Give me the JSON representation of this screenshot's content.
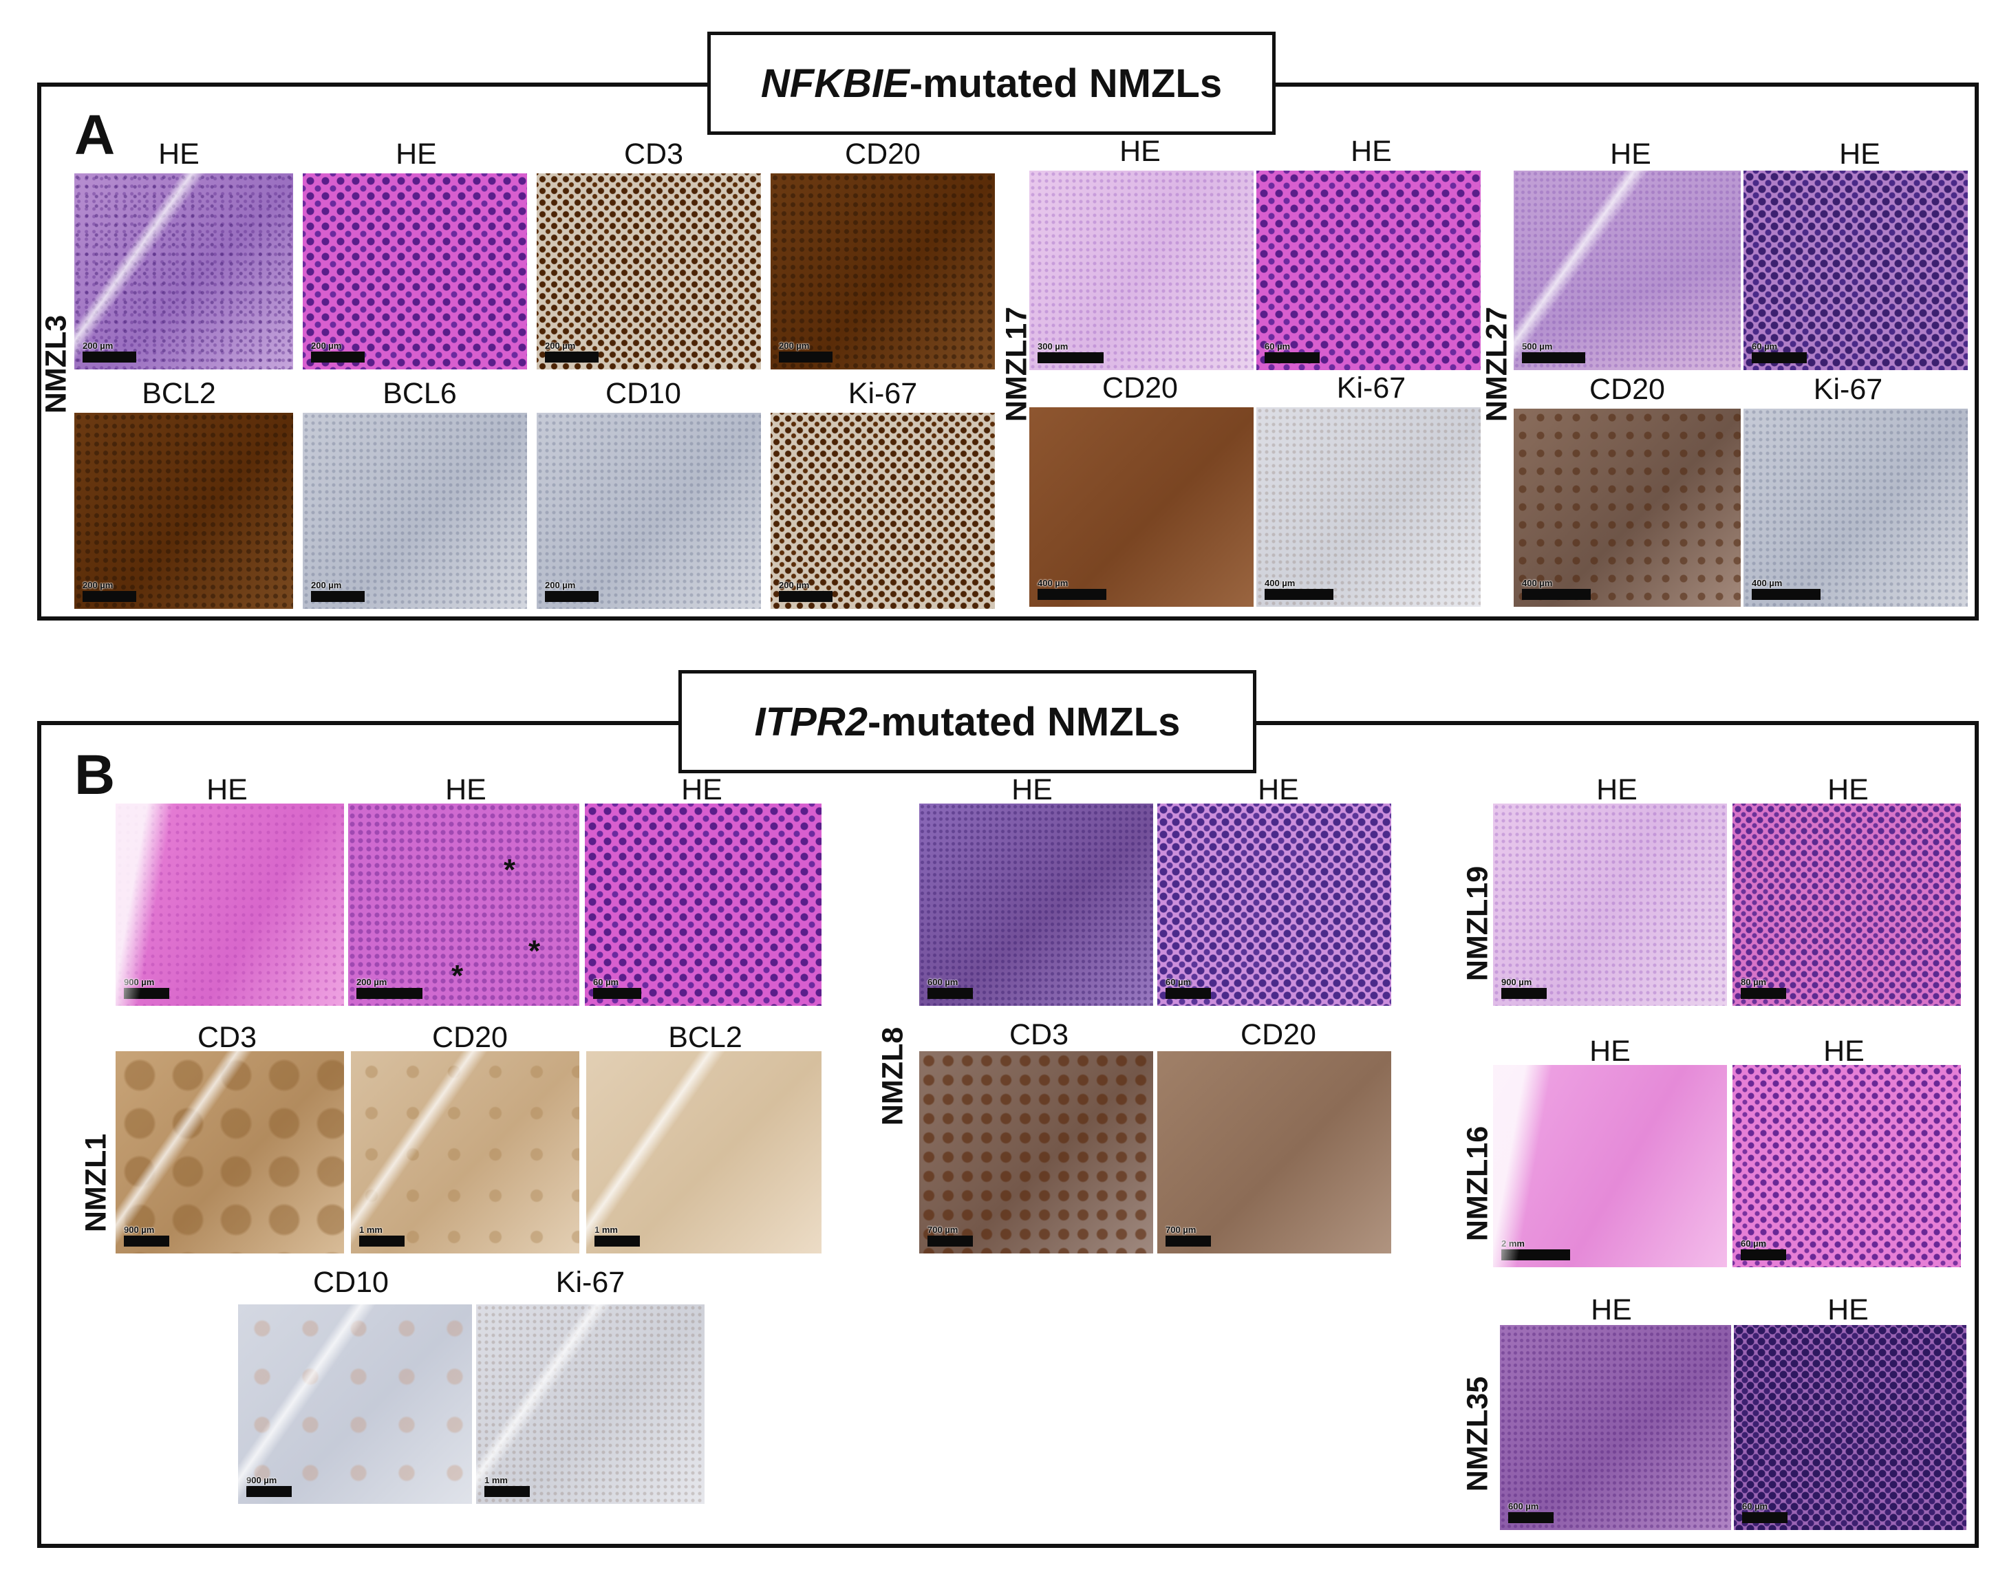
{
  "panelA": {
    "title_italic": "NFKBIE",
    "title_rest": "-mutated NMZLs",
    "letter": "A",
    "cases": {
      "nmzl3": "NMZL3",
      "nmzl17": "NMZL17",
      "nmzl27": "NMZL27"
    },
    "labels": {
      "n3_he1": "HE",
      "n3_he2": "HE",
      "n3_cd3": "CD3",
      "n3_cd20": "CD20",
      "n3_bcl2": "BCL2",
      "n3_bcl6": "BCL6",
      "n3_cd10": "CD10",
      "n3_ki67": "Ki-67",
      "n17_he1": "HE",
      "n17_he2": "HE",
      "n17_cd20": "CD20",
      "n17_ki67": "Ki-67",
      "n27_he1": "HE",
      "n27_he2": "HE",
      "n27_cd20": "CD20",
      "n27_ki67": "Ki-67"
    },
    "scales": {
      "n3_he1": "200 µm",
      "n3_he2": "200 µm",
      "n3_cd3": "200 µm",
      "n3_cd20": "200 µm",
      "n3_bcl2": "200 µm",
      "n3_bcl6": "200 µm",
      "n3_cd10": "200 µm",
      "n3_ki67": "200 µm",
      "n17_he1": "300 µm",
      "n17_he2": "60 µm",
      "n17_cd20": "400 µm",
      "n17_ki67": "400 µm",
      "n27_he1": "500 µm",
      "n27_he2": "60 µm",
      "n27_cd20": "400 µm",
      "n27_ki67": "400 µm"
    }
  },
  "panelB": {
    "title_italic": "ITPR2",
    "title_rest": "-mutated NMZLs",
    "letter": "B",
    "cases": {
      "nmzl1": "NMZL1",
      "nmzl8": "NMZL8",
      "nmzl19": "NMZL19",
      "nmzl16": "NMZL16",
      "nmzl35": "NMZL35"
    },
    "labels": {
      "n1_he1": "HE",
      "n1_he2": "HE",
      "n1_he3": "HE",
      "n1_cd3": "CD3",
      "n1_cd20": "CD20",
      "n1_bcl2": "BCL2",
      "n1_cd10": "CD10",
      "n1_ki67": "Ki-67",
      "n8_he1": "HE",
      "n8_he2": "HE",
      "n8_cd3": "CD3",
      "n8_cd20": "CD20",
      "n19_he1": "HE",
      "n19_he2": "HE",
      "n16_he1": "HE",
      "n16_he2": "HE",
      "n35_he1": "HE",
      "n35_he2": "HE"
    },
    "scales": {
      "n1_he1": "900 µm",
      "n1_he2": "200 µm",
      "n1_he3": "60 µm",
      "n1_cd3": "900 µm",
      "n1_cd20": "1 mm",
      "n1_bcl2": "1 mm",
      "n1_cd10": "900 µm",
      "n1_ki67": "1 mm",
      "n8_he1": "600 µm",
      "n8_he2": "60 µm",
      "n8_cd3": "700 µm",
      "n8_cd20": "700 µm",
      "n19_he1": "900 µm",
      "n19_he2": "80 µm",
      "n16_he1": "2 mm",
      "n16_he2": "60 µm",
      "n35_he1": "600 µm",
      "n35_he2": "60 µm"
    },
    "asterisk": "*"
  }
}
